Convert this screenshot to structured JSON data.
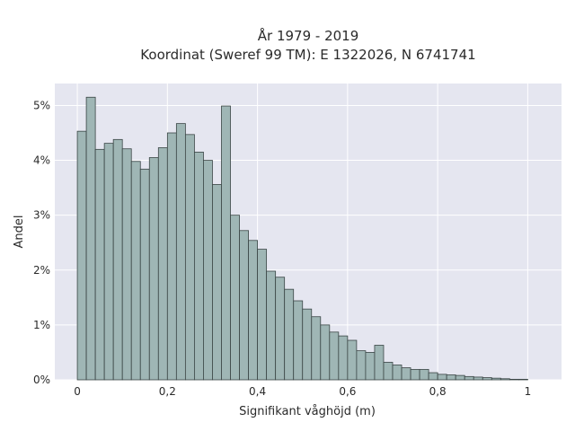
{
  "chart_data": {
    "type": "bar",
    "title_line1": "År 1979 - 2019",
    "title_line2": "Koordinat (Sweref 99 TM): E 1322026, N 6741741",
    "xlabel": "Signifikant våghöjd (m)",
    "ylabel": "Andel",
    "bin_width": 0.02,
    "bin_start": 0,
    "xlim": [
      -0.05,
      1.075
    ],
    "ylim": [
      0,
      5.4
    ],
    "x_ticks": [
      {
        "value": 0,
        "label": "0"
      },
      {
        "value": 0.2,
        "label": "0,2"
      },
      {
        "value": 0.4,
        "label": "0,4"
      },
      {
        "value": 0.6,
        "label": "0,6"
      },
      {
        "value": 0.8,
        "label": "0,8"
      },
      {
        "value": 1.0,
        "label": "1"
      }
    ],
    "y_ticks": [
      {
        "value": 0,
        "label": "0%"
      },
      {
        "value": 1,
        "label": "1%"
      },
      {
        "value": 2,
        "label": "2%"
      },
      {
        "value": 3,
        "label": "3%"
      },
      {
        "value": 4,
        "label": "4%"
      },
      {
        "value": 5,
        "label": "5%"
      }
    ],
    "values_percent": [
      4.53,
      5.15,
      4.2,
      4.31,
      4.38,
      4.21,
      3.98,
      3.84,
      4.05,
      4.23,
      4.5,
      4.67,
      4.47,
      4.15,
      4.0,
      3.56,
      4.99,
      3.0,
      2.72,
      2.54,
      2.38,
      1.98,
      1.87,
      1.65,
      1.44,
      1.29,
      1.15,
      1.0,
      0.87,
      0.8,
      0.72,
      0.53,
      0.5,
      0.63,
      0.32,
      0.27,
      0.22,
      0.19,
      0.19,
      0.13,
      0.1,
      0.09,
      0.08,
      0.06,
      0.05,
      0.04,
      0.03,
      0.02,
      0.01,
      0.01
    ],
    "grid": true,
    "colors": {
      "plot_bg": "#e5e6f0",
      "bar_fill": "#9fb6b5",
      "bar_stroke": "#3a4545",
      "grid": "#ffffff"
    }
  }
}
